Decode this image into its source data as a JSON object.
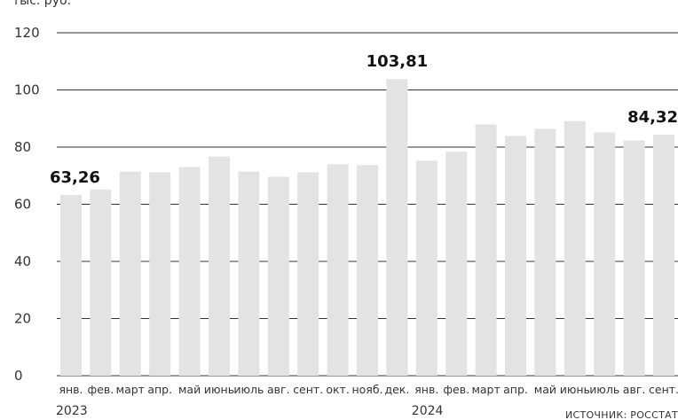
{
  "chart_data": {
    "type": "bar",
    "title": "тыс. руб.",
    "source": "ИСТОЧНИК: РОССТАТ",
    "categories": [
      "янв.",
      "фев.",
      "март",
      "апр.",
      "май",
      "июнь",
      "июль",
      "авг.",
      "сент.",
      "окт.",
      "нояб.",
      "дек.",
      "янв.",
      "фев.",
      "март",
      "апр.",
      "май",
      "июнь",
      "июль",
      "авг.",
      "сент."
    ],
    "years": [
      {
        "label": "2023",
        "start_index": 0
      },
      {
        "label": "2024",
        "start_index": 12
      }
    ],
    "values": [
      63.26,
      65.2,
      71.4,
      71.2,
      73.0,
      76.7,
      71.4,
      69.6,
      71.2,
      74.0,
      73.7,
      103.81,
      75.2,
      78.4,
      87.9,
      83.9,
      86.4,
      89.1,
      85.1,
      82.3,
      84.32
    ],
    "data_labels": [
      {
        "index": 0,
        "text": "63,26"
      },
      {
        "index": 11,
        "text": "103,81"
      },
      {
        "index": 20,
        "text": "84,32"
      }
    ],
    "yticks": [
      0,
      20,
      40,
      60,
      80,
      100,
      120
    ],
    "ylim": [
      0,
      120
    ],
    "grid": true,
    "colors": {
      "bar": "#e3e3e3",
      "grid": "#333333"
    }
  }
}
